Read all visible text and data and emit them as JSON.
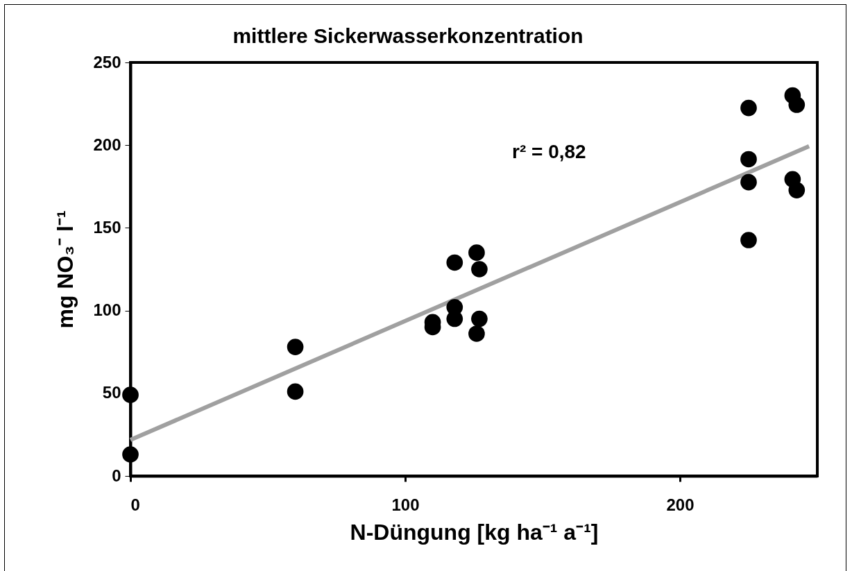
{
  "chart_data": {
    "type": "scatter",
    "title": "mittlere Sickerwasserkonzentration",
    "xlabel": "N-Düngung [kg ha⁻¹ a⁻¹]",
    "ylabel": "mg NO₃⁻ l⁻¹",
    "series": [
      {
        "color": "#000000",
        "marker": "circle",
        "x": [
          0,
          0,
          60,
          60,
          110,
          110,
          118,
          118,
          118,
          126,
          126,
          127,
          127,
          225,
          225,
          225,
          225,
          241,
          242.5,
          241,
          242.5
        ],
        "values": [
          49,
          13,
          78,
          51,
          93,
          90,
          102,
          95,
          129,
          135,
          86,
          125,
          95,
          222.5,
          191.5,
          177.6,
          142.6,
          230,
          224.4,
          179.4,
          172.8
        ]
      },
      {
        "type": "line",
        "color": "#a0a0a0",
        "x": [
          0,
          247
        ],
        "values": [
          21.8,
          199.3
        ]
      }
    ],
    "annotations": [
      "r² = 0,82"
    ],
    "xlim": [
      0,
      250
    ],
    "xticks": [
      0,
      100,
      200
    ],
    "ylim": [
      0,
      250
    ],
    "yticks": [
      0,
      50,
      100,
      150,
      200,
      250
    ],
    "grid": false
  }
}
